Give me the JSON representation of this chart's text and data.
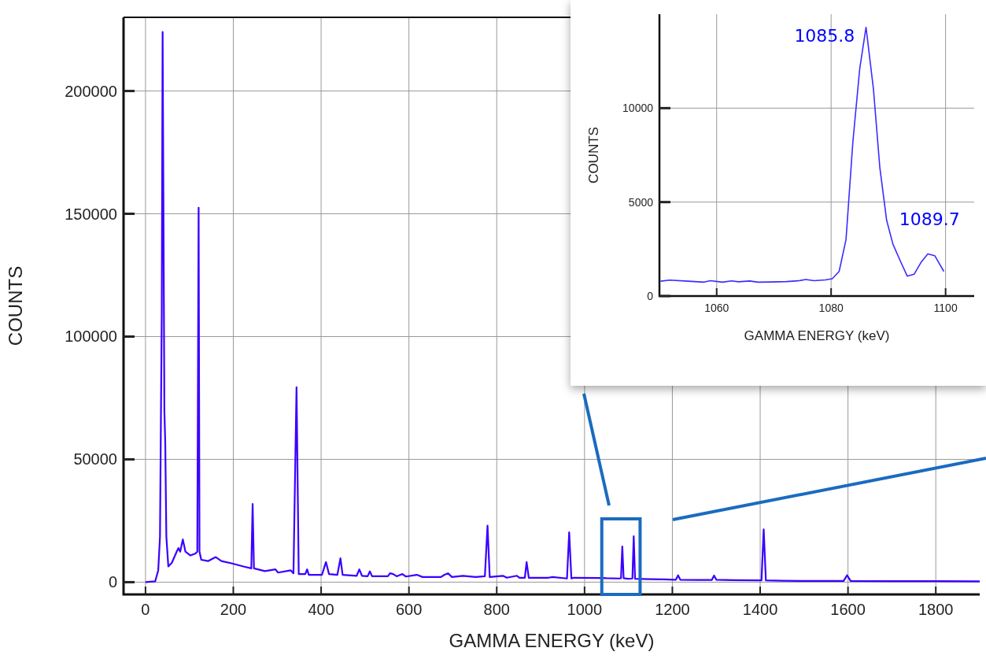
{
  "chart_data": [
    {
      "type": "line",
      "xlabel": "GAMMA ENERGY (keV)",
      "ylabel": "COUNTS",
      "xlim": [
        -50,
        1900
      ],
      "ylim": [
        -5000,
        230000
      ],
      "xticks": [
        0,
        200,
        400,
        600,
        800,
        1000,
        1200,
        1400,
        1600,
        1800
      ],
      "yticks": [
        0,
        50000,
        100000,
        150000,
        200000
      ],
      "grid": true,
      "marker": "none",
      "line_style": "solid",
      "series": [
        {
          "color": "#3a00ff",
          "x": [
            0,
            22,
            29,
            33,
            37,
            39,
            42,
            43,
            45,
            47.5,
            52,
            60,
            71,
            75,
            79,
            85,
            91,
            102,
            114,
            118,
            121,
            123,
            127,
            143,
            160,
            173,
            198,
            223,
            241,
            244,
            247,
            272,
            296,
            302,
            331,
            337,
            344,
            349,
            364,
            368,
            372,
            402,
            411,
            418,
            437,
            444,
            449,
            481,
            487,
            493,
            506,
            511,
            516,
            552,
            557,
            564,
            572,
            585,
            593,
            618,
            631,
            673,
            681,
            689,
            698,
            723,
            752,
            773,
            779,
            784,
            814,
            823,
            846,
            852,
            864,
            868,
            873,
            918,
            927,
            960,
            965,
            970,
            975,
            1040,
            1050,
            1080,
            1083,
            1086,
            1089,
            1099,
            1109,
            1112,
            1115,
            1150,
            1180,
            1208,
            1213,
            1218,
            1260,
            1290,
            1295,
            1300,
            1340,
            1403,
            1408,
            1413,
            1450,
            1500,
            1590,
            1598,
            1606,
            1700,
            1800,
            1900
          ],
          "values": [
            0,
            300,
            4800,
            18500,
            109000,
            224000,
            109000,
            69700,
            56700,
            18500,
            6400,
            7900,
            12400,
            13900,
            12400,
            17400,
            12400,
            10900,
            11700,
            12400,
            152500,
            12400,
            9100,
            8600,
            10200,
            8600,
            7600,
            6400,
            5600,
            31800,
            5600,
            4500,
            5200,
            3900,
            4800,
            3600,
            79400,
            3300,
            3300,
            5200,
            3000,
            3000,
            8200,
            3300,
            3000,
            9700,
            3000,
            2600,
            5200,
            2600,
            2400,
            4400,
            2400,
            2400,
            3600,
            3300,
            2400,
            3300,
            2300,
            3000,
            2100,
            2100,
            3000,
            3600,
            2100,
            2600,
            2100,
            2400,
            23000,
            2100,
            2600,
            1800,
            2600,
            1800,
            1800,
            8200,
            1800,
            1800,
            2100,
            1500,
            20300,
            1500,
            1800,
            1700,
            1600,
            1500,
            1600,
            14500,
            1600,
            1400,
            1500,
            18700,
            1400,
            1200,
            1100,
            1000,
            2800,
            1000,
            900,
            900,
            2700,
            1000,
            800,
            700,
            21500,
            700,
            600,
            500,
            500,
            2800,
            500,
            400,
            400,
            300
          ]
        }
      ]
    },
    {
      "type": "line",
      "xlabel": "GAMMA ENERGY (keV)",
      "ylabel": "COUNTS",
      "xlim": [
        1050,
        1105
      ],
      "ylim": [
        0,
        15000
      ],
      "xticks": [
        1060,
        1080,
        1100
      ],
      "yticks": [
        0,
        5000,
        10000
      ],
      "grid": true,
      "marker": "none",
      "line_style": "solid",
      "annotations": [
        {
          "text": "1085.8",
          "x": 1085.8,
          "y": 14300
        },
        {
          "text": "1089.7",
          "x": 1089.7,
          "y": 4030
        }
      ],
      "series": [
        {
          "color": "#3b2bff",
          "x": [
            1050.2,
            1051.8,
            1055,
            1057.8,
            1058.9,
            1061,
            1062.6,
            1063.8,
            1065.8,
            1067.2,
            1069.6,
            1072.2,
            1074.2,
            1075.6,
            1077,
            1079,
            1080.2,
            1081.4,
            1082.6,
            1083.8,
            1085,
            1086.1,
            1087.4,
            1088.5,
            1089.7,
            1090.8,
            1092.2,
            1093.3,
            1094.5,
            1095.7,
            1096.9,
            1098.1,
            1099.7
          ],
          "values": [
            790,
            850,
            790,
            740,
            820,
            740,
            810,
            760,
            800,
            740,
            750,
            770,
            810,
            880,
            820,
            860,
            920,
            1310,
            3000,
            8200,
            12100,
            14300,
            11000,
            6870,
            4030,
            2760,
            1790,
            1060,
            1160,
            1790,
            2240,
            2150,
            1310
          ]
        }
      ]
    }
  ]
}
